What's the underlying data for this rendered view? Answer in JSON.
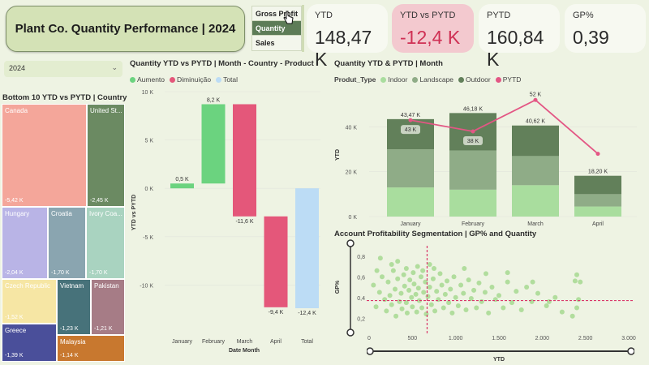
{
  "header": {
    "title": "Plant Co. Quantity Performance | 2024",
    "segments": [
      "Gross Profit",
      "Quantity",
      "Sales"
    ],
    "active_segment": "Quantity"
  },
  "kpis": [
    {
      "label": "YTD",
      "value": "148,47 K"
    },
    {
      "label": "YTD vs PYTD",
      "value": "-12,4 K",
      "status": "negative"
    },
    {
      "label": "PYTD",
      "value": "160,84 K"
    },
    {
      "label": "GP%",
      "value": "0,39"
    }
  ],
  "slicer": {
    "value": "2024",
    "icon": "chevron-down-icon"
  },
  "treemap": {
    "title": "Bottom 10 YTD vs PYTD | Country",
    "tiles": [
      {
        "name": "Canada",
        "value": "-5,42 K",
        "color": "#f4a69a"
      },
      {
        "name": "United St...",
        "value": "-2,45 K",
        "color": "#6b8a62"
      },
      {
        "name": "Hungary",
        "value": "-2,04 K",
        "color": "#b9b4e6"
      },
      {
        "name": "Croatia",
        "value": "-1,70 K",
        "color": "#8aa5b0"
      },
      {
        "name": "Ivory Coa...",
        "value": "-1,70 K",
        "color": "#a9d3c0"
      },
      {
        "name": "Czech Republic",
        "value": "-1,52 K",
        "color": "#f6e6a4"
      },
      {
        "name": "Vietnam",
        "value": "-1,23 K",
        "color": "#47727a"
      },
      {
        "name": "Pakistan",
        "value": "-1,21 K",
        "color": "#a67c86"
      },
      {
        "name": "Greece",
        "value": "-1,39 K",
        "color": "#4a4f9a"
      },
      {
        "name": "Malaysia",
        "value": "-1,14 K",
        "color": "#c8782f"
      }
    ]
  },
  "waterfall": {
    "title": "Quantity YTD vs PYTD | Month - Country - Product",
    "legend": [
      {
        "label": "Aumento",
        "color": "#6bd37f"
      },
      {
        "label": "Diminuição",
        "color": "#e4577a"
      },
      {
        "label": "Total",
        "color": "#bcdcf5"
      }
    ],
    "ylabel": "YTD vs PYTD",
    "xlabel": "Date Month"
  },
  "combo": {
    "title": "Quantity YTD & PYTD | Month",
    "legend_title": "Produt_Type",
    "legend": [
      {
        "label": "Indoor",
        "color": "#a9dd9e"
      },
      {
        "label": "Landscape",
        "color": "#8fac87"
      },
      {
        "label": "Outdoor",
        "color": "#62805a"
      },
      {
        "label": "PYTD",
        "color": "#e35684"
      }
    ],
    "ylabel": "YTD"
  },
  "scatter": {
    "title": "Account Profitability Segmentation | GP% and Quantity",
    "xlabel": "YTD",
    "ylabel": "GP%"
  },
  "chart_data": [
    {
      "type": "bar",
      "subtype": "waterfall",
      "categories": [
        "January",
        "February",
        "March",
        "April",
        "Total"
      ],
      "values": [
        0.5,
        8.2,
        -11.6,
        -9.4,
        -12.4
      ],
      "value_labels": [
        "0,5 K",
        "8,2 K",
        "-11,6 K",
        "-9,4 K",
        "-12,4 K"
      ],
      "ylim": [
        -15,
        10
      ],
      "yticks": [
        10,
        5,
        0,
        -5,
        -10
      ],
      "ytick_labels": [
        "10 K",
        "5 K",
        "0 K",
        "-5 K",
        "-10 K"
      ],
      "ylabel": "YTD vs PYTD",
      "xlabel": "Date Month"
    },
    {
      "type": "bar",
      "subtype": "stacked-bar-with-line",
      "categories": [
        "January",
        "February",
        "March",
        "April"
      ],
      "series": [
        {
          "name": "Indoor",
          "values": [
            13,
            12,
            14,
            4.5
          ]
        },
        {
          "name": "Landscape",
          "values": [
            17,
            17.5,
            13,
            5.5
          ]
        },
        {
          "name": "Outdoor",
          "values": [
            13.47,
            16.68,
            13.62,
            8.2
          ]
        },
        {
          "name": "PYTD",
          "type": "line",
          "values": [
            43,
            38,
            52,
            28
          ]
        }
      ],
      "totals_labels": [
        "43,47 K",
        "46,18 K",
        "40,62 K",
        "18,20 K"
      ],
      "line_labels": [
        "43 K",
        "38 K",
        "52 K",
        ""
      ],
      "ylim": [
        0,
        55
      ],
      "yticks": [
        0,
        20,
        40
      ],
      "ytick_labels": [
        "0 K",
        "20 K",
        "40 K"
      ],
      "ylabel": "YTD",
      "legend": "top-left"
    },
    {
      "type": "scatter",
      "xlim": [
        0,
        3000
      ],
      "ylim": [
        0.1,
        0.9
      ],
      "xticks": [
        0,
        500,
        1000,
        1500,
        2000,
        2500,
        3000
      ],
      "xtick_labels": [
        "0",
        "500",
        "1.000",
        "1.500",
        "2.000",
        "2.500",
        "3.000"
      ],
      "yticks": [
        0.2,
        0.4,
        0.6,
        0.8
      ],
      "ytick_labels": [
        "0,2",
        "0,4",
        "0,6",
        "0,8"
      ],
      "reference_lines": {
        "x": 670,
        "y": 0.37
      },
      "xlabel": "YTD",
      "ylabel": "GP%",
      "points": [
        [
          50,
          0.52
        ],
        [
          80,
          0.31
        ],
        [
          120,
          0.45
        ],
        [
          150,
          0.6
        ],
        [
          180,
          0.38
        ],
        [
          200,
          0.27
        ],
        [
          220,
          0.55
        ],
        [
          240,
          0.42
        ],
        [
          260,
          0.33
        ],
        [
          280,
          0.66
        ],
        [
          300,
          0.48
        ],
        [
          310,
          0.22
        ],
        [
          330,
          0.58
        ],
        [
          350,
          0.36
        ],
        [
          370,
          0.44
        ],
        [
          380,
          0.29
        ],
        [
          400,
          0.62
        ],
        [
          410,
          0.51
        ],
        [
          430,
          0.35
        ],
        [
          440,
          0.25
        ],
        [
          460,
          0.47
        ],
        [
          470,
          0.57
        ],
        [
          490,
          0.4
        ],
        [
          500,
          0.31
        ],
        [
          510,
          0.64
        ],
        [
          520,
          0.53
        ],
        [
          540,
          0.43
        ],
        [
          550,
          0.26
        ],
        [
          570,
          0.49
        ],
        [
          580,
          0.37
        ],
        [
          600,
          0.6
        ],
        [
          610,
          0.3
        ],
        [
          630,
          0.45
        ],
        [
          650,
          0.55
        ],
        [
          660,
          0.24
        ],
        [
          680,
          0.41
        ],
        [
          700,
          0.5
        ],
        [
          720,
          0.33
        ],
        [
          740,
          0.58
        ],
        [
          760,
          0.27
        ],
        [
          780,
          0.46
        ],
        [
          800,
          0.38
        ],
        [
          820,
          0.63
        ],
        [
          840,
          0.52
        ],
        [
          860,
          0.3
        ],
        [
          880,
          0.43
        ],
        [
          900,
          0.56
        ],
        [
          920,
          0.35
        ],
        [
          940,
          0.48
        ],
        [
          960,
          0.25
        ],
        [
          980,
          0.6
        ],
        [
          1000,
          0.4
        ],
        [
          1030,
          0.32
        ],
        [
          1060,
          0.52
        ],
        [
          1090,
          0.44
        ],
        [
          1120,
          0.28
        ],
        [
          1150,
          0.57
        ],
        [
          1180,
          0.39
        ],
        [
          1210,
          0.47
        ],
        [
          1240,
          0.3
        ],
        [
          1270,
          0.54
        ],
        [
          1300,
          0.36
        ],
        [
          1340,
          0.45
        ],
        [
          1380,
          0.25
        ],
        [
          1420,
          0.5
        ],
        [
          1460,
          0.38
        ],
        [
          1500,
          0.42
        ],
        [
          1550,
          0.3
        ],
        [
          1600,
          0.55
        ],
        [
          1650,
          0.35
        ],
        [
          1700,
          0.46
        ],
        [
          1760,
          0.28
        ],
        [
          1820,
          0.5
        ],
        [
          1880,
          0.36
        ],
        [
          1950,
          0.44
        ],
        [
          2050,
          0.32
        ],
        [
          2150,
          0.4
        ],
        [
          2230,
          0.26
        ],
        [
          2350,
          0.22
        ],
        [
          2420,
          0.38
        ],
        [
          2440,
          0.55
        ],
        [
          2400,
          0.3
        ],
        [
          1890,
          0.55
        ],
        [
          2080,
          0.36
        ],
        [
          130,
          0.78
        ],
        [
          330,
          0.75
        ],
        [
          560,
          0.7
        ],
        [
          700,
          0.72
        ],
        [
          90,
          0.66
        ],
        [
          260,
          0.72
        ],
        [
          430,
          0.68
        ],
        [
          620,
          0.66
        ],
        [
          750,
          0.68
        ],
        [
          1100,
          0.68
        ],
        [
          1350,
          0.63
        ],
        [
          1600,
          0.64
        ],
        [
          2400,
          0.62
        ],
        [
          2380,
          0.56
        ]
      ]
    }
  ]
}
